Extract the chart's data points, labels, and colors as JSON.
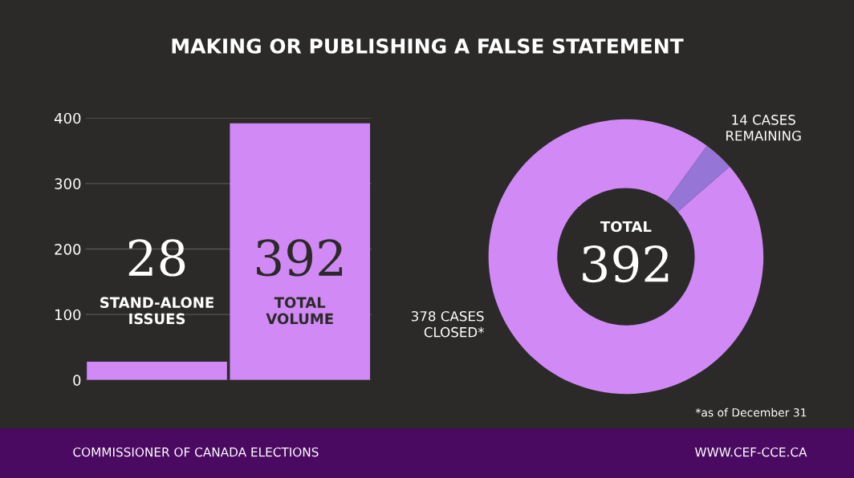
{
  "chart_data": [
    {
      "type": "bar",
      "title": "MAKING OR PUBLISHING A FALSE STATEMENT",
      "categories": [
        "STAND-ALONE\nISSUES",
        "TOTAL\nVOLUME"
      ],
      "values": [
        28,
        392
      ],
      "color": "#d18af5",
      "ylim": [
        0,
        400
      ],
      "yticks": [
        0,
        100,
        200,
        300,
        400
      ],
      "grid": "y",
      "data_labels": true
    },
    {
      "type": "donut",
      "categories": [
        "378 CASES\nCLOSED*",
        "14 CASES\nREMAINING"
      ],
      "values": [
        378,
        14
      ],
      "colors": [
        "#d18af5",
        "#9575d6"
      ],
      "annotations": [
        "TOTAL",
        "392",
        "*as of December 31",
        "COMMISSIONER OF CANADA ELECTIONS",
        "WWW.CEF-CCE.CA"
      ]
    }
  ]
}
